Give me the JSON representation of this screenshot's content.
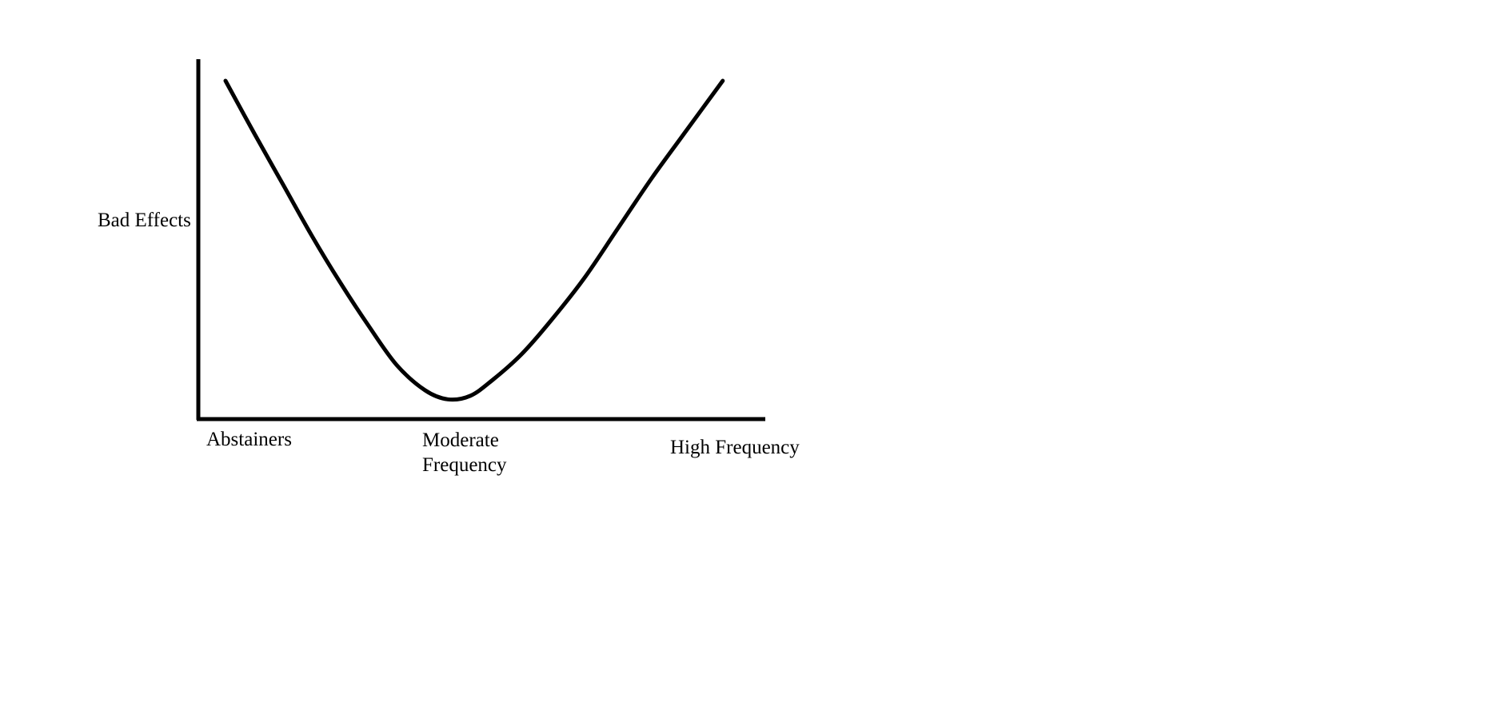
{
  "chart_data": {
    "type": "line",
    "ylabel": "Bad Effects",
    "xlabel": "",
    "categories": [
      {
        "label": "Abstainers",
        "lines": [
          "Abstainers"
        ]
      },
      {
        "label": "Moderate Frequency",
        "lines": [
          "Moderate",
          "Frequency"
        ]
      },
      {
        "label": "High Frequency",
        "lines": [
          "High Frequency"
        ]
      }
    ],
    "x_range": [
      0,
      1
    ],
    "y_range": [
      0,
      1
    ],
    "series": [
      {
        "x": [
          0.048,
          0.1,
          0.15,
          0.2,
          0.25,
          0.3,
          0.35,
          0.4,
          0.44,
          0.48,
          0.52,
          0.57,
          0.62,
          0.68,
          0.74,
          0.8,
          0.86,
          0.925
        ],
        "y": [
          0.94,
          0.79,
          0.65,
          0.51,
          0.38,
          0.26,
          0.15,
          0.08,
          0.055,
          0.065,
          0.11,
          0.18,
          0.27,
          0.39,
          0.53,
          0.67,
          0.8,
          0.94
        ]
      }
    ],
    "grid": false,
    "legend": "none",
    "line_color": "#000000",
    "axis_color": "#000000"
  }
}
